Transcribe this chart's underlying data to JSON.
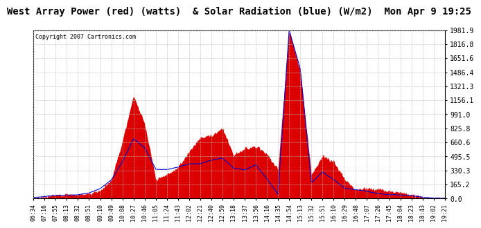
{
  "title": "West Array Power (red) (watts)  & Solar Radiation (blue) (W/m2)  Mon Apr 9 19:25",
  "copyright": "Copyright 2007 Cartronics.com",
  "ymax": 1981.9,
  "ymin": 0.0,
  "yticks": [
    0.0,
    165.2,
    330.3,
    495.5,
    660.6,
    825.8,
    991.0,
    1156.1,
    1321.3,
    1486.4,
    1651.6,
    1816.8,
    1981.9
  ],
  "background_color": "#ffffff",
  "plot_bg_color": "#ffffff",
  "grid_color": "#bbbbbb",
  "red_color": "#dd0000",
  "blue_color": "#0000cc",
  "title_fontsize": 10,
  "xtick_labels": [
    "06:34",
    "07:16",
    "07:55",
    "08:13",
    "08:32",
    "08:51",
    "09:10",
    "09:49",
    "10:08",
    "10:27",
    "10:46",
    "11:05",
    "11:24",
    "11:43",
    "12:02",
    "12:21",
    "12:40",
    "12:59",
    "13:18",
    "13:37",
    "13:56",
    "14:16",
    "14:35",
    "14:54",
    "15:13",
    "15:32",
    "15:51",
    "16:10",
    "16:29",
    "16:48",
    "17:07",
    "17:26",
    "17:45",
    "18:04",
    "18:23",
    "18:43",
    "19:02",
    "19:21"
  ]
}
